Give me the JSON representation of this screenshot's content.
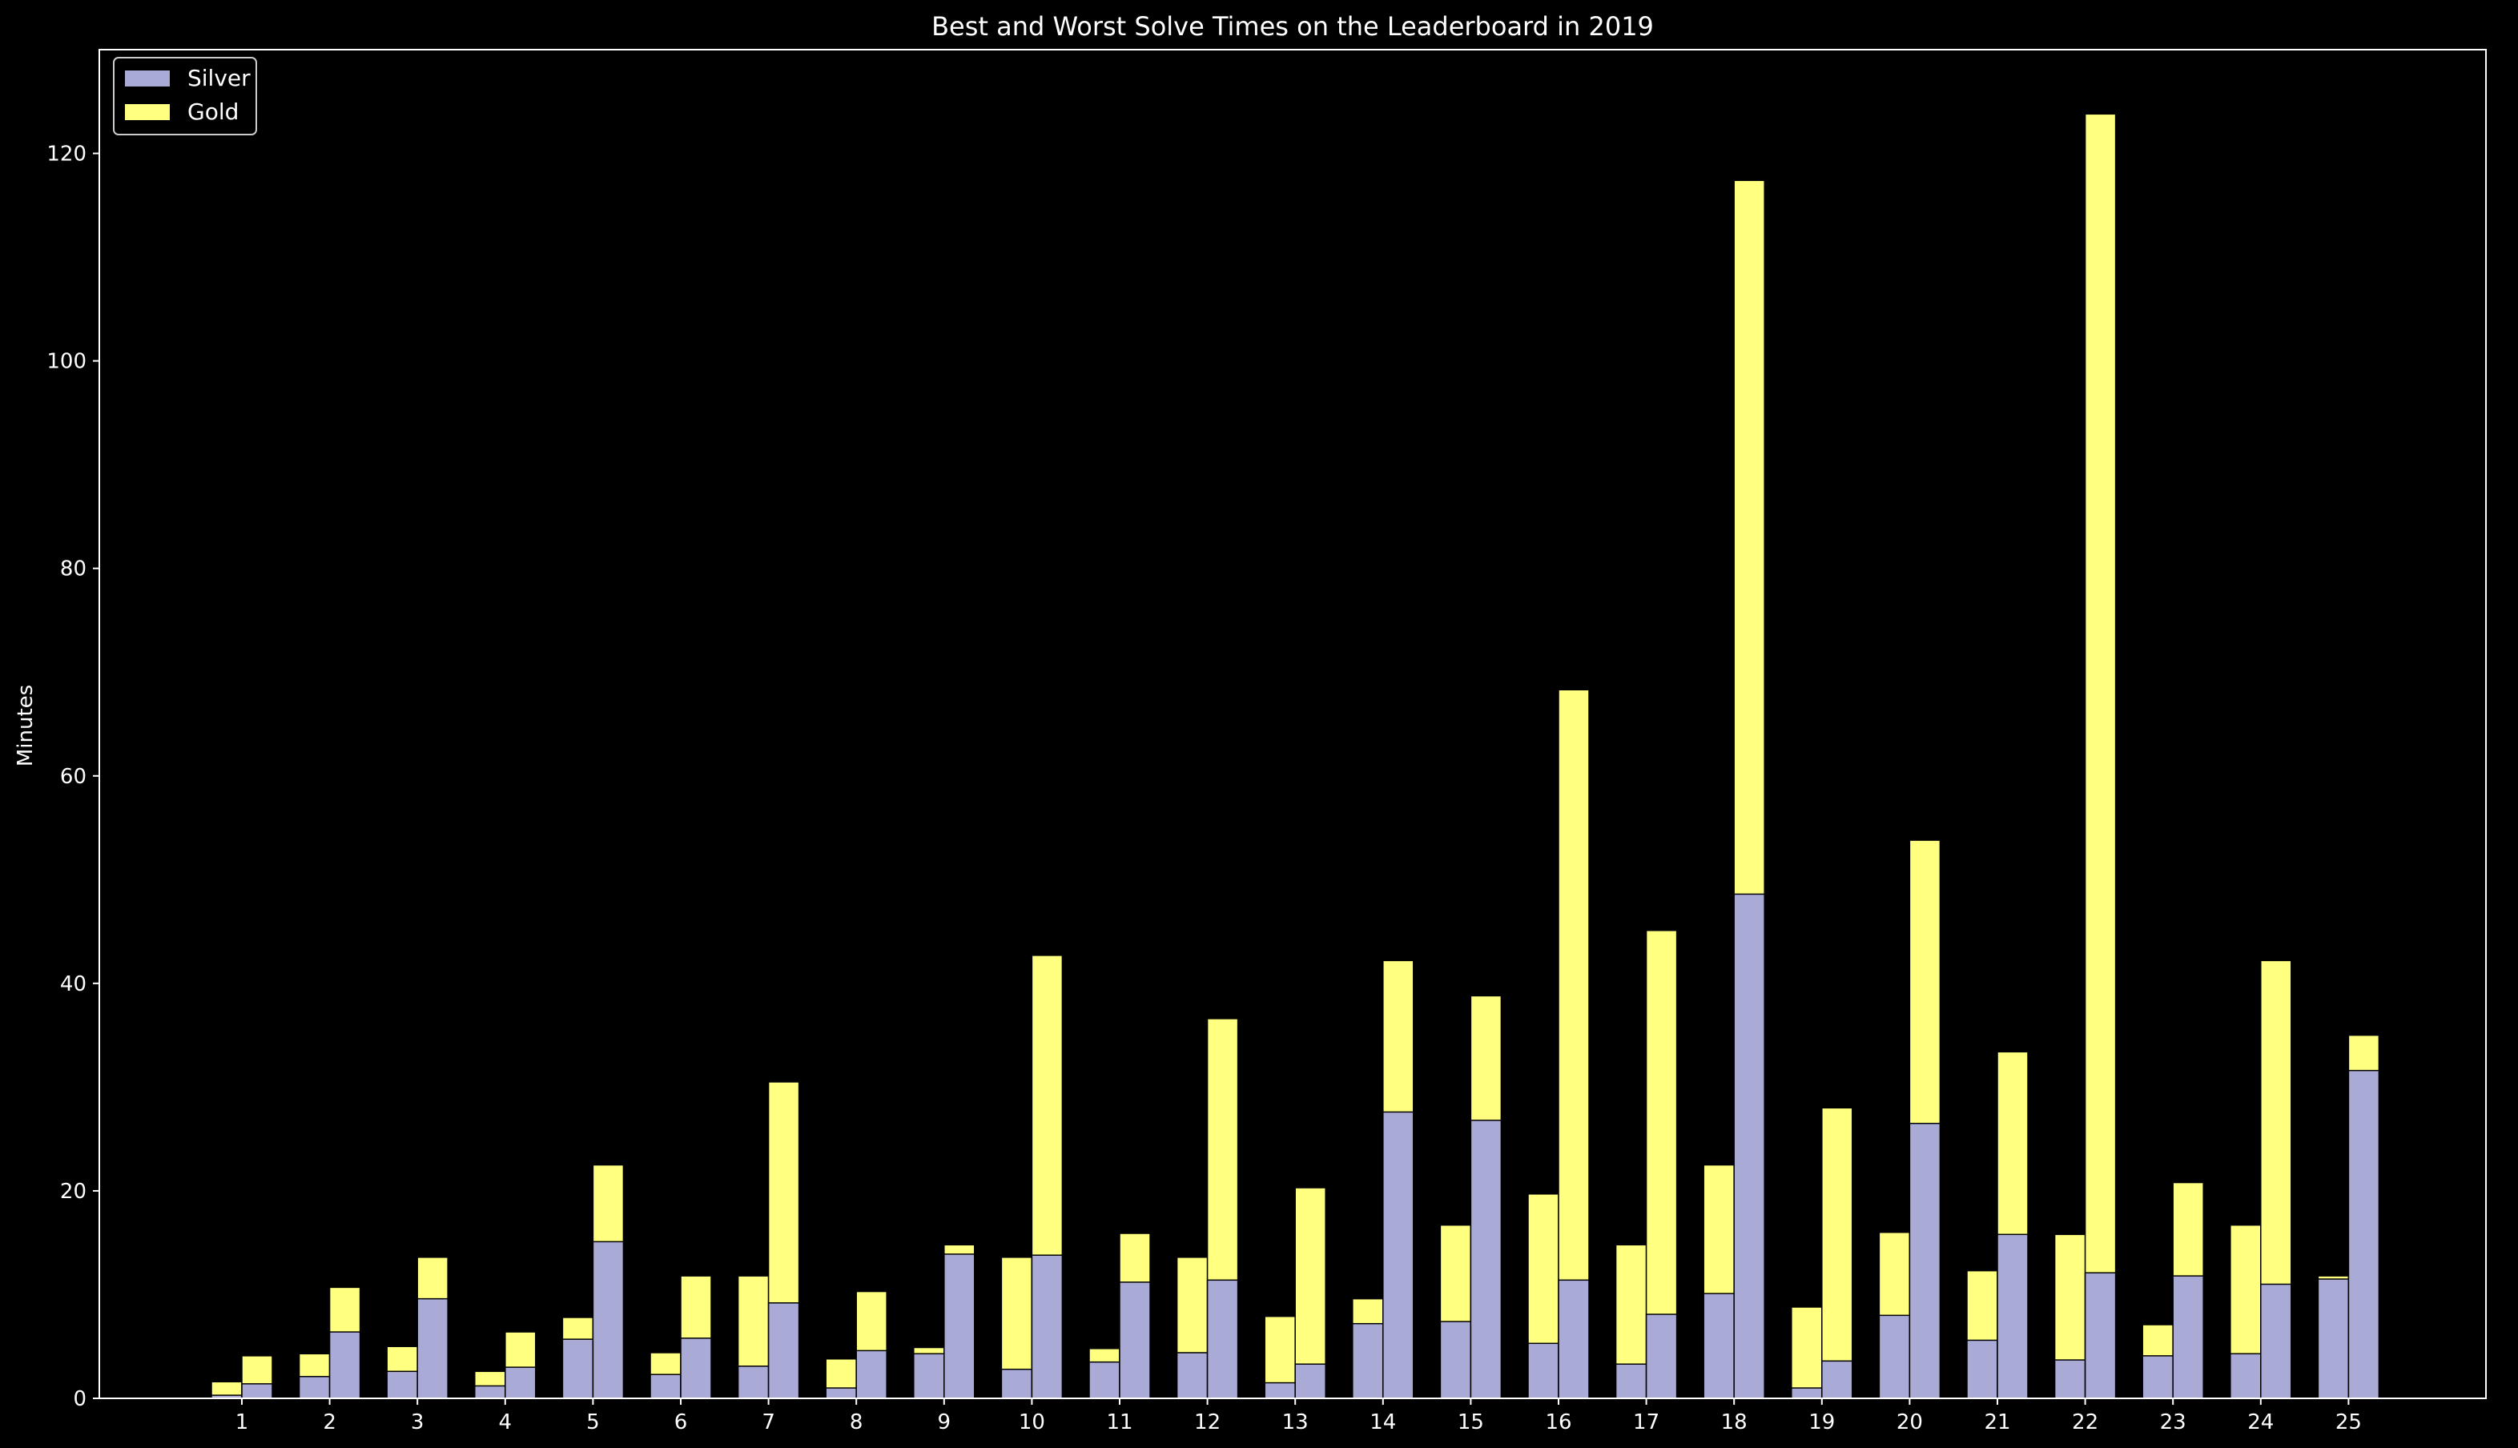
{
  "chart_data": {
    "type": "bar",
    "title": "Best and Worst Solve Times on the Leaderboard in 2019",
    "xlabel": "",
    "ylabel": "Minutes",
    "ylim": [
      0,
      130
    ],
    "yticks": [
      0,
      20,
      40,
      60,
      80,
      100,
      120
    ],
    "grid": false,
    "legend": "top-left",
    "categories": [
      "1",
      "2",
      "3",
      "4",
      "5",
      "6",
      "7",
      "8",
      "9",
      "10",
      "11",
      "12",
      "13",
      "14",
      "15",
      "16",
      "17",
      "18",
      "19",
      "20",
      "21",
      "22",
      "23",
      "24",
      "25"
    ],
    "bar_groups": [
      "Best",
      "Worst"
    ],
    "series": [
      {
        "name": "Silver",
        "color": "#aaaad6",
        "best": [
          0.3,
          2.1,
          2.6,
          1.2,
          5.7,
          2.3,
          3.1,
          1.0,
          4.3,
          2.8,
          3.5,
          4.4,
          1.5,
          7.2,
          7.4,
          5.3,
          3.3,
          10.1,
          1.0,
          8.0,
          5.6,
          3.7,
          4.1,
          4.3,
          11.5
        ],
        "worst": [
          1.4,
          6.4,
          9.6,
          3.0,
          15.1,
          5.8,
          9.2,
          4.6,
          13.9,
          13.8,
          11.2,
          11.4,
          3.3,
          27.6,
          26.8,
          11.4,
          8.1,
          48.6,
          3.6,
          26.5,
          15.8,
          12.1,
          11.8,
          11.0,
          31.6
        ]
      },
      {
        "name": "Gold",
        "color": "#ffff80",
        "best": [
          1.6,
          4.3,
          5.0,
          2.6,
          7.8,
          4.4,
          11.8,
          3.8,
          4.9,
          13.6,
          4.8,
          13.6,
          7.9,
          9.6,
          16.7,
          19.7,
          14.8,
          22.5,
          8.8,
          16.0,
          12.3,
          15.8,
          7.1,
          16.7,
          11.8
        ],
        "worst": [
          4.1,
          10.7,
          13.6,
          6.4,
          22.5,
          11.8,
          30.5,
          10.3,
          14.8,
          42.7,
          15.9,
          36.6,
          20.3,
          42.2,
          38.8,
          68.3,
          45.1,
          117.4,
          28.0,
          53.8,
          33.4,
          123.8,
          20.8,
          42.2,
          35.0
        ]
      }
    ]
  }
}
